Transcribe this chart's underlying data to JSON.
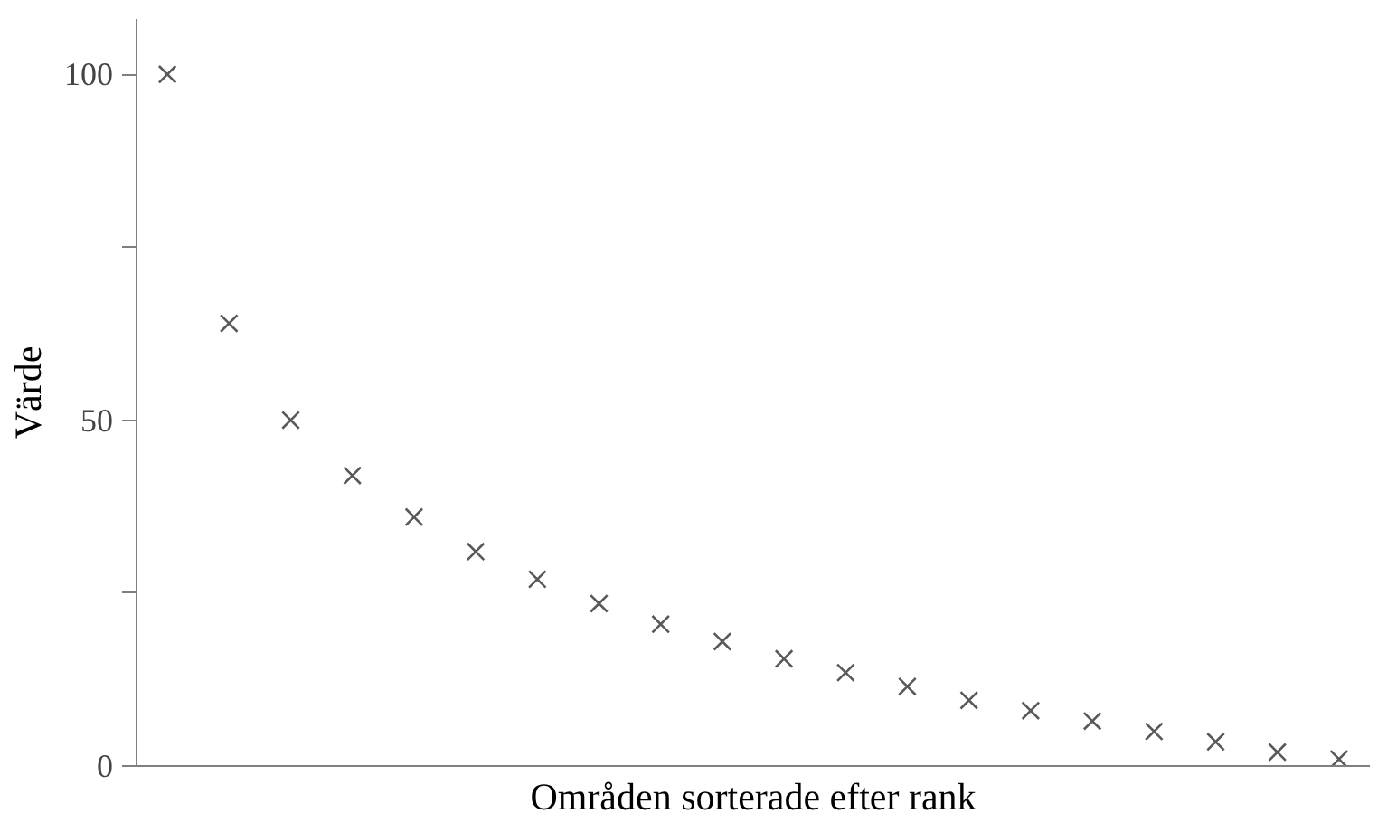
{
  "chart_data": {
    "type": "scatter",
    "xlabel": "Områden sorterade efter rank",
    "ylabel": "Värde",
    "categories": [
      null,
      null,
      null,
      null,
      null,
      null,
      null,
      null,
      null,
      null,
      null,
      null,
      null,
      null,
      null,
      null,
      null,
      null,
      null,
      null
    ],
    "values": [
      100,
      64,
      50,
      42,
      36,
      31,
      27,
      23.5,
      20.5,
      18,
      15.5,
      13.5,
      11.5,
      9.5,
      8,
      6.5,
      5,
      3.5,
      2,
      1
    ],
    "color": "#595959",
    "marker": "cross",
    "ylim": [
      0,
      108
    ],
    "yticks": [
      0,
      {
        "value": 25,
        "label": null
      },
      50,
      {
        "value": 75,
        "label": null
      },
      100
    ],
    "grid": false
  }
}
